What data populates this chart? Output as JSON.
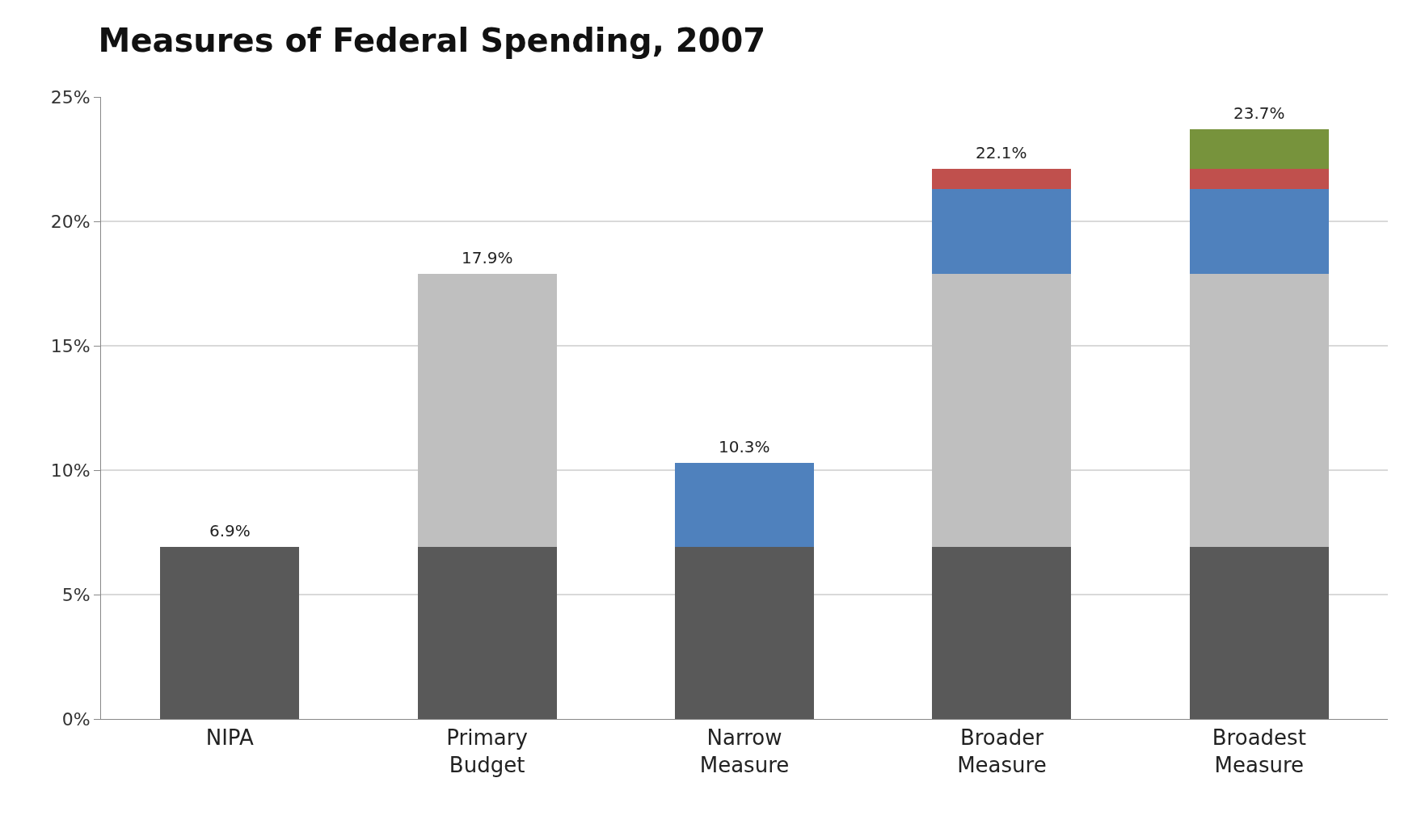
{
  "chart_data": {
    "type": "bar",
    "title": "Measures of Federal Spending, 2007",
    "categories": [
      "NIPA",
      "Primary\nBudget",
      "Narrow\nMeasure",
      "Broader\nMeasure",
      "Broadest\nMeasure"
    ],
    "stacked": true,
    "series": [
      {
        "color": "#595959",
        "values": [
          6.9,
          6.9,
          6.9,
          6.9,
          6.9
        ]
      },
      {
        "color": "#bfbfbf",
        "values": [
          null,
          11.0,
          null,
          11.0,
          11.0
        ]
      },
      {
        "color": "#4f81bd",
        "values": [
          null,
          null,
          3.4,
          3.4,
          3.4
        ]
      },
      {
        "color": "#c0504d",
        "values": [
          null,
          null,
          null,
          0.8,
          0.8
        ]
      },
      {
        "color": "#77933c",
        "values": [
          null,
          null,
          null,
          null,
          1.6
        ]
      }
    ],
    "totals": [
      "6.9%",
      "17.9%",
      "10.3%",
      "22.1%",
      "23.7%"
    ],
    "ylim": [
      0,
      25
    ],
    "yticks": [
      {
        "value": 0,
        "label": "0%"
      },
      {
        "value": 5,
        "label": "5%"
      },
      {
        "value": 10,
        "label": "10%"
      },
      {
        "value": 15,
        "label": "15%"
      },
      {
        "value": 20,
        "label": "20%"
      },
      {
        "value": 25,
        "label": "25%"
      }
    ],
    "grid": "y"
  }
}
